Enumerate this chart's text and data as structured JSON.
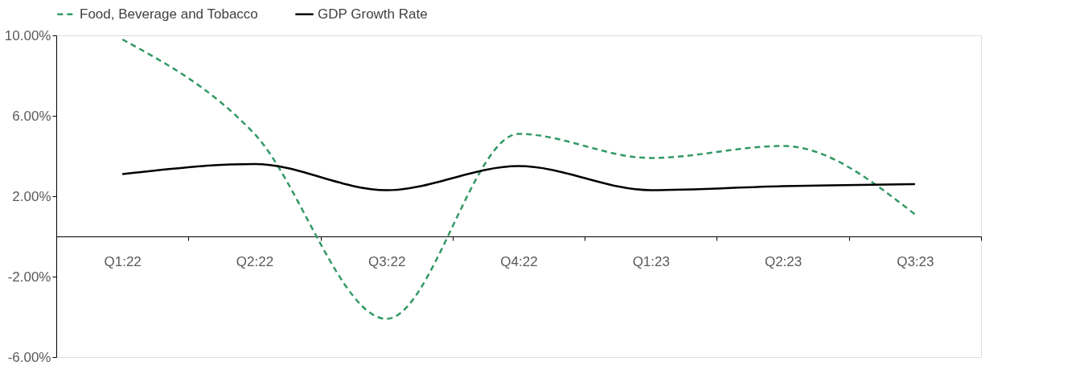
{
  "chart_data": {
    "type": "line",
    "categories": [
      "Q1:22",
      "Q2:22",
      "Q3:22",
      "Q4:22",
      "Q1:23",
      "Q2:23",
      "Q3:23"
    ],
    "series": [
      {
        "name": "Food, Beverage and Tobacco",
        "color": "#339966",
        "line_style": "dashed",
        "values": [
          9.8,
          5.1,
          -4.1,
          5.1,
          3.9,
          4.5,
          1.1
        ]
      },
      {
        "name": "GDP Growth Rate",
        "color": "#000000",
        "line_style": "solid",
        "values": [
          3.1,
          3.6,
          2.3,
          3.5,
          2.3,
          2.5,
          2.6
        ]
      }
    ],
    "ylim": [
      -6,
      10
    ],
    "yticks": [
      {
        "value": -6,
        "label": "-6.00%"
      },
      {
        "value": -2,
        "label": "-2.00%"
      },
      {
        "value": 2,
        "label": "2.00%"
      },
      {
        "value": 6,
        "label": "6.00%"
      },
      {
        "value": 10,
        "label": "10.00%"
      }
    ],
    "grid": false,
    "legend": "top"
  }
}
